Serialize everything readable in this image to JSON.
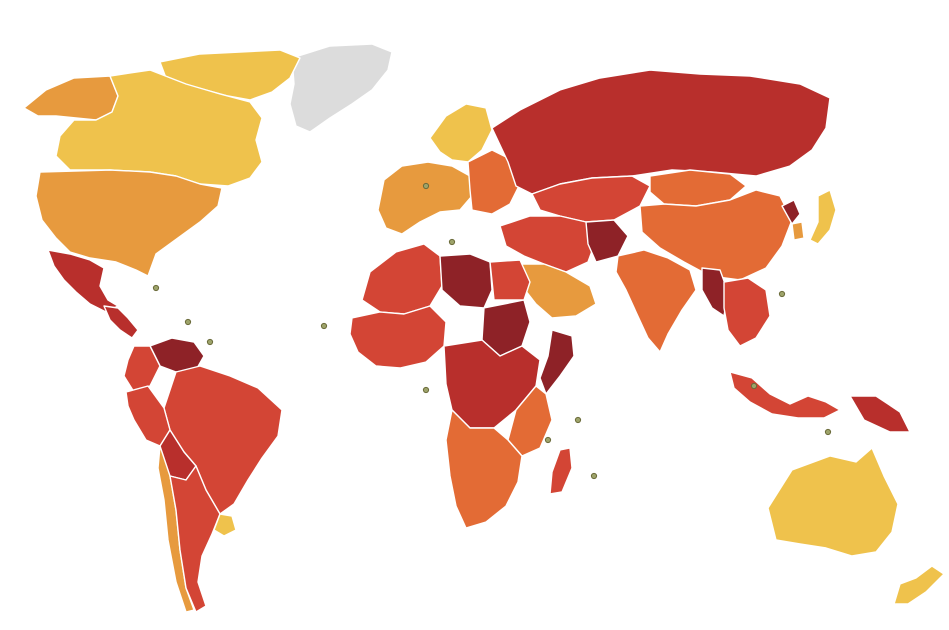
{
  "map": {
    "type": "choropleth-world",
    "palette": {
      "no_data": "#dcdcdc",
      "band_1_light_yellow": "#efc24c",
      "band_2_orange": "#e79a3e",
      "band_3_dark_orange": "#e36b35",
      "band_4_red": "#d34535",
      "band_5_dark_red": "#b82f2c",
      "band_6_darkest_red": "#8e2227"
    },
    "islands_marker_color": "#9da36a",
    "regions": [
      {
        "name": "greenland",
        "band": "no_data"
      },
      {
        "name": "canada",
        "band": "band_1_light_yellow"
      },
      {
        "name": "canadian-arctic-islands",
        "band": "band_1_light_yellow"
      },
      {
        "name": "alaska",
        "band": "band_2_orange"
      },
      {
        "name": "united-states",
        "band": "band_2_orange"
      },
      {
        "name": "mexico",
        "band": "band_5_dark_red"
      },
      {
        "name": "central-america",
        "band": "band_5_dark_red"
      },
      {
        "name": "venezuela",
        "band": "band_6_darkest_red"
      },
      {
        "name": "colombia",
        "band": "band_4_red"
      },
      {
        "name": "brazil",
        "band": "band_4_red"
      },
      {
        "name": "peru",
        "band": "band_4_red"
      },
      {
        "name": "bolivia",
        "band": "band_5_dark_red"
      },
      {
        "name": "chile",
        "band": "band_2_orange"
      },
      {
        "name": "argentina",
        "band": "band_4_red"
      },
      {
        "name": "uruguay",
        "band": "band_1_light_yellow"
      },
      {
        "name": "scandinavia",
        "band": "band_1_light_yellow"
      },
      {
        "name": "western-europe",
        "band": "band_2_orange"
      },
      {
        "name": "eastern-europe",
        "band": "band_3_dark_orange"
      },
      {
        "name": "russia",
        "band": "band_5_dark_red"
      },
      {
        "name": "central-asia",
        "band": "band_4_red"
      },
      {
        "name": "china",
        "band": "band_3_dark_orange"
      },
      {
        "name": "mongolia",
        "band": "band_3_dark_orange"
      },
      {
        "name": "japan",
        "band": "band_1_light_yellow"
      },
      {
        "name": "korea",
        "band": "band_2_orange"
      },
      {
        "name": "north-korea",
        "band": "band_6_darkest_red"
      },
      {
        "name": "middle-east",
        "band": "band_4_red"
      },
      {
        "name": "arabian-peninsula",
        "band": "band_2_orange"
      },
      {
        "name": "afghanistan",
        "band": "band_6_darkest_red"
      },
      {
        "name": "india",
        "band": "band_3_dark_orange"
      },
      {
        "name": "myanmar",
        "band": "band_6_darkest_red"
      },
      {
        "name": "southeast-asia",
        "band": "band_4_red"
      },
      {
        "name": "indonesia",
        "band": "band_4_red"
      },
      {
        "name": "papua-new-guinea",
        "band": "band_5_dark_red"
      },
      {
        "name": "north-africa",
        "band": "band_4_red"
      },
      {
        "name": "libya",
        "band": "band_6_darkest_red"
      },
      {
        "name": "west-africa",
        "band": "band_4_red"
      },
      {
        "name": "sudan",
        "band": "band_6_darkest_red"
      },
      {
        "name": "somalia",
        "band": "band_6_darkest_red"
      },
      {
        "name": "central-africa",
        "band": "band_5_dark_red"
      },
      {
        "name": "east-africa",
        "band": "band_3_dark_orange"
      },
      {
        "name": "southern-africa",
        "band": "band_3_dark_orange"
      },
      {
        "name": "madagascar",
        "band": "band_4_red"
      },
      {
        "name": "australia",
        "band": "band_1_light_yellow"
      },
      {
        "name": "new-zealand",
        "band": "band_1_light_yellow"
      }
    ]
  }
}
